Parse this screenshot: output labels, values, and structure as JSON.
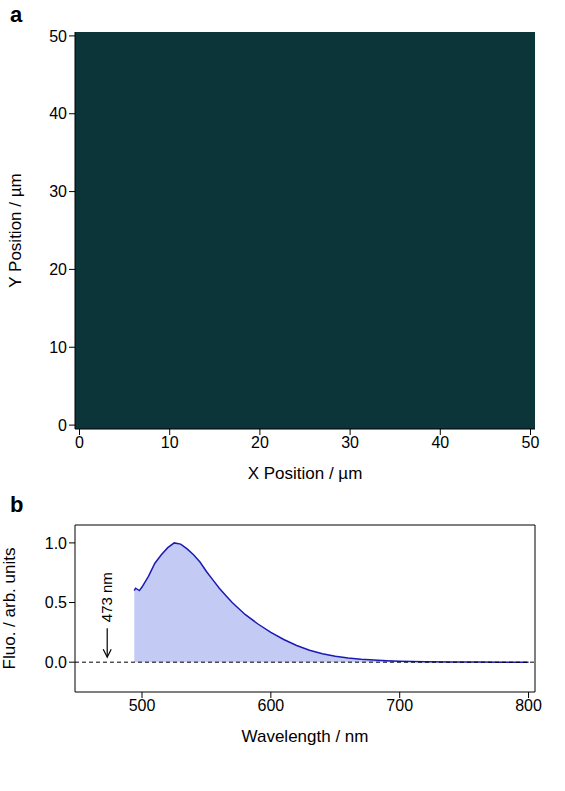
{
  "chart_data": [
    {
      "type": "image",
      "panel": "a",
      "x_label": "X Position / µm",
      "y_label": "Y Position / µm",
      "xlim": [
        -0.5,
        50.5
      ],
      "ylim": [
        -0.5,
        50.5
      ],
      "xticks": [
        0,
        10,
        20,
        30,
        40,
        50
      ],
      "yticks": [
        0,
        10,
        20,
        30,
        40,
        50
      ]
    },
    {
      "type": "area",
      "panel": "b",
      "x_label": "Wavelength / nm",
      "y_label": "Fluo. / arb. units",
      "x": [
        494,
        495,
        498,
        500,
        505,
        510,
        515,
        520,
        525,
        530,
        535,
        540,
        545,
        550,
        555,
        560,
        565,
        570,
        575,
        580,
        590,
        600,
        610,
        620,
        630,
        640,
        650,
        660,
        670,
        680,
        690,
        700,
        720,
        740,
        760,
        780,
        800
      ],
      "values": [
        0.6,
        0.62,
        0.6,
        0.63,
        0.72,
        0.83,
        0.9,
        0.96,
        1.0,
        0.99,
        0.95,
        0.9,
        0.84,
        0.76,
        0.69,
        0.62,
        0.56,
        0.5,
        0.45,
        0.4,
        0.32,
        0.25,
        0.19,
        0.14,
        0.1,
        0.07,
        0.05,
        0.035,
        0.025,
        0.018,
        0.012,
        0.008,
        0.004,
        0.002,
        0.001,
        0,
        0
      ],
      "color": "#1a1ab4",
      "xlim": [
        448,
        805
      ],
      "ylim": [
        -0.25,
        1.15
      ],
      "xticks": [
        500,
        600,
        700,
        800
      ],
      "yticks": [
        {
          "value": 0,
          "label": "0.0"
        },
        {
          "value": 0.5,
          "label": "0.5"
        },
        {
          "value": 1,
          "label": "1.0"
        }
      ],
      "annotations": [
        {
          "text": "473 nm",
          "x": 473,
          "y": 0
        }
      ]
    }
  ]
}
